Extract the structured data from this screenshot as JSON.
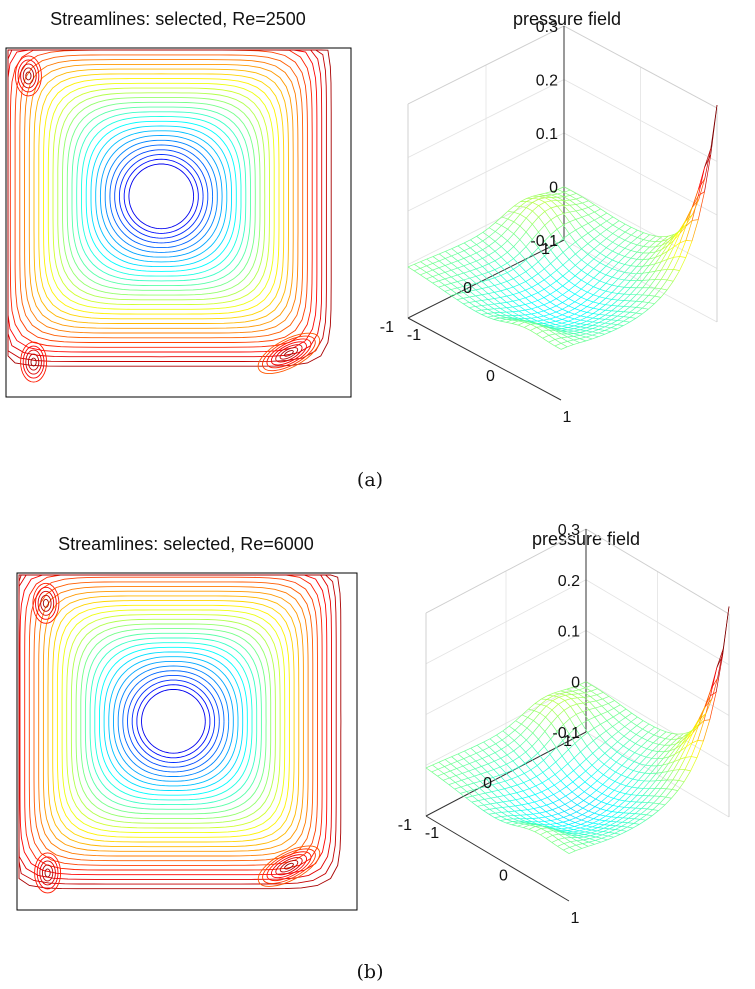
{
  "figure": {
    "panels": [
      {
        "caption": "(a)",
        "streamlines": {
          "title": "Streamlines: selected, Re=2500"
        },
        "pressure": {
          "title": "pressure field"
        }
      },
      {
        "caption": "(b)",
        "streamlines": {
          "title": "Streamlines: selected, Re=6000"
        },
        "pressure": {
          "title": "pressure field"
        }
      }
    ]
  },
  "chart_data": [
    {
      "type": "contour",
      "title": "Streamlines: selected, Re=2500",
      "xlim": [
        -1,
        1
      ],
      "ylim": [
        -1,
        1
      ],
      "axis_ticks": "none",
      "colormap": "jet",
      "levels": 30,
      "primary_vortex_center": [
        -0.1,
        0.15
      ],
      "secondary_vortices": [
        {
          "location": "top-left",
          "center": [
            -0.87,
            0.84
          ]
        },
        {
          "location": "bottom-left",
          "center": [
            -0.84,
            -0.8
          ]
        },
        {
          "location": "bottom-right",
          "center": [
            0.64,
            -0.75
          ]
        }
      ]
    },
    {
      "type": "surface",
      "title": "pressure field",
      "style": "mesh",
      "colormap": "jet",
      "x_ticks": [
        -1,
        0,
        1
      ],
      "y_ticks": [
        -1,
        0,
        1
      ],
      "z_ticks": [
        -0.1,
        0,
        0.1,
        0.2,
        0.3
      ],
      "zlim": [
        -0.1,
        0.3
      ],
      "peak": {
        "x": 1,
        "y": 1,
        "z": 0.31
      },
      "minimum": -0.07,
      "grid": true
    },
    {
      "type": "contour",
      "title": "Streamlines: selected, Re=6000",
      "xlim": [
        -1,
        1
      ],
      "ylim": [
        -1,
        1
      ],
      "axis_ticks": "none",
      "colormap": "jet",
      "levels": 30,
      "primary_vortex_center": [
        -0.08,
        0.12
      ],
      "secondary_vortices": [
        {
          "location": "top-left",
          "center": [
            -0.83,
            0.82
          ]
        },
        {
          "location": "bottom-left",
          "center": [
            -0.82,
            -0.78
          ]
        },
        {
          "location": "bottom-right",
          "center": [
            0.6,
            -0.74
          ]
        }
      ]
    },
    {
      "type": "surface",
      "title": "pressure field",
      "style": "mesh",
      "colormap": "jet",
      "x_ticks": [
        -1,
        0,
        1
      ],
      "y_ticks": [
        -1,
        0,
        1
      ],
      "z_ticks": [
        -0.1,
        0,
        0.1,
        0.2,
        0.3
      ],
      "zlim": [
        -0.1,
        0.3
      ],
      "peak": {
        "x": 1,
        "y": 1,
        "z": 0.32
      },
      "minimum": -0.08,
      "grid": true
    }
  ]
}
